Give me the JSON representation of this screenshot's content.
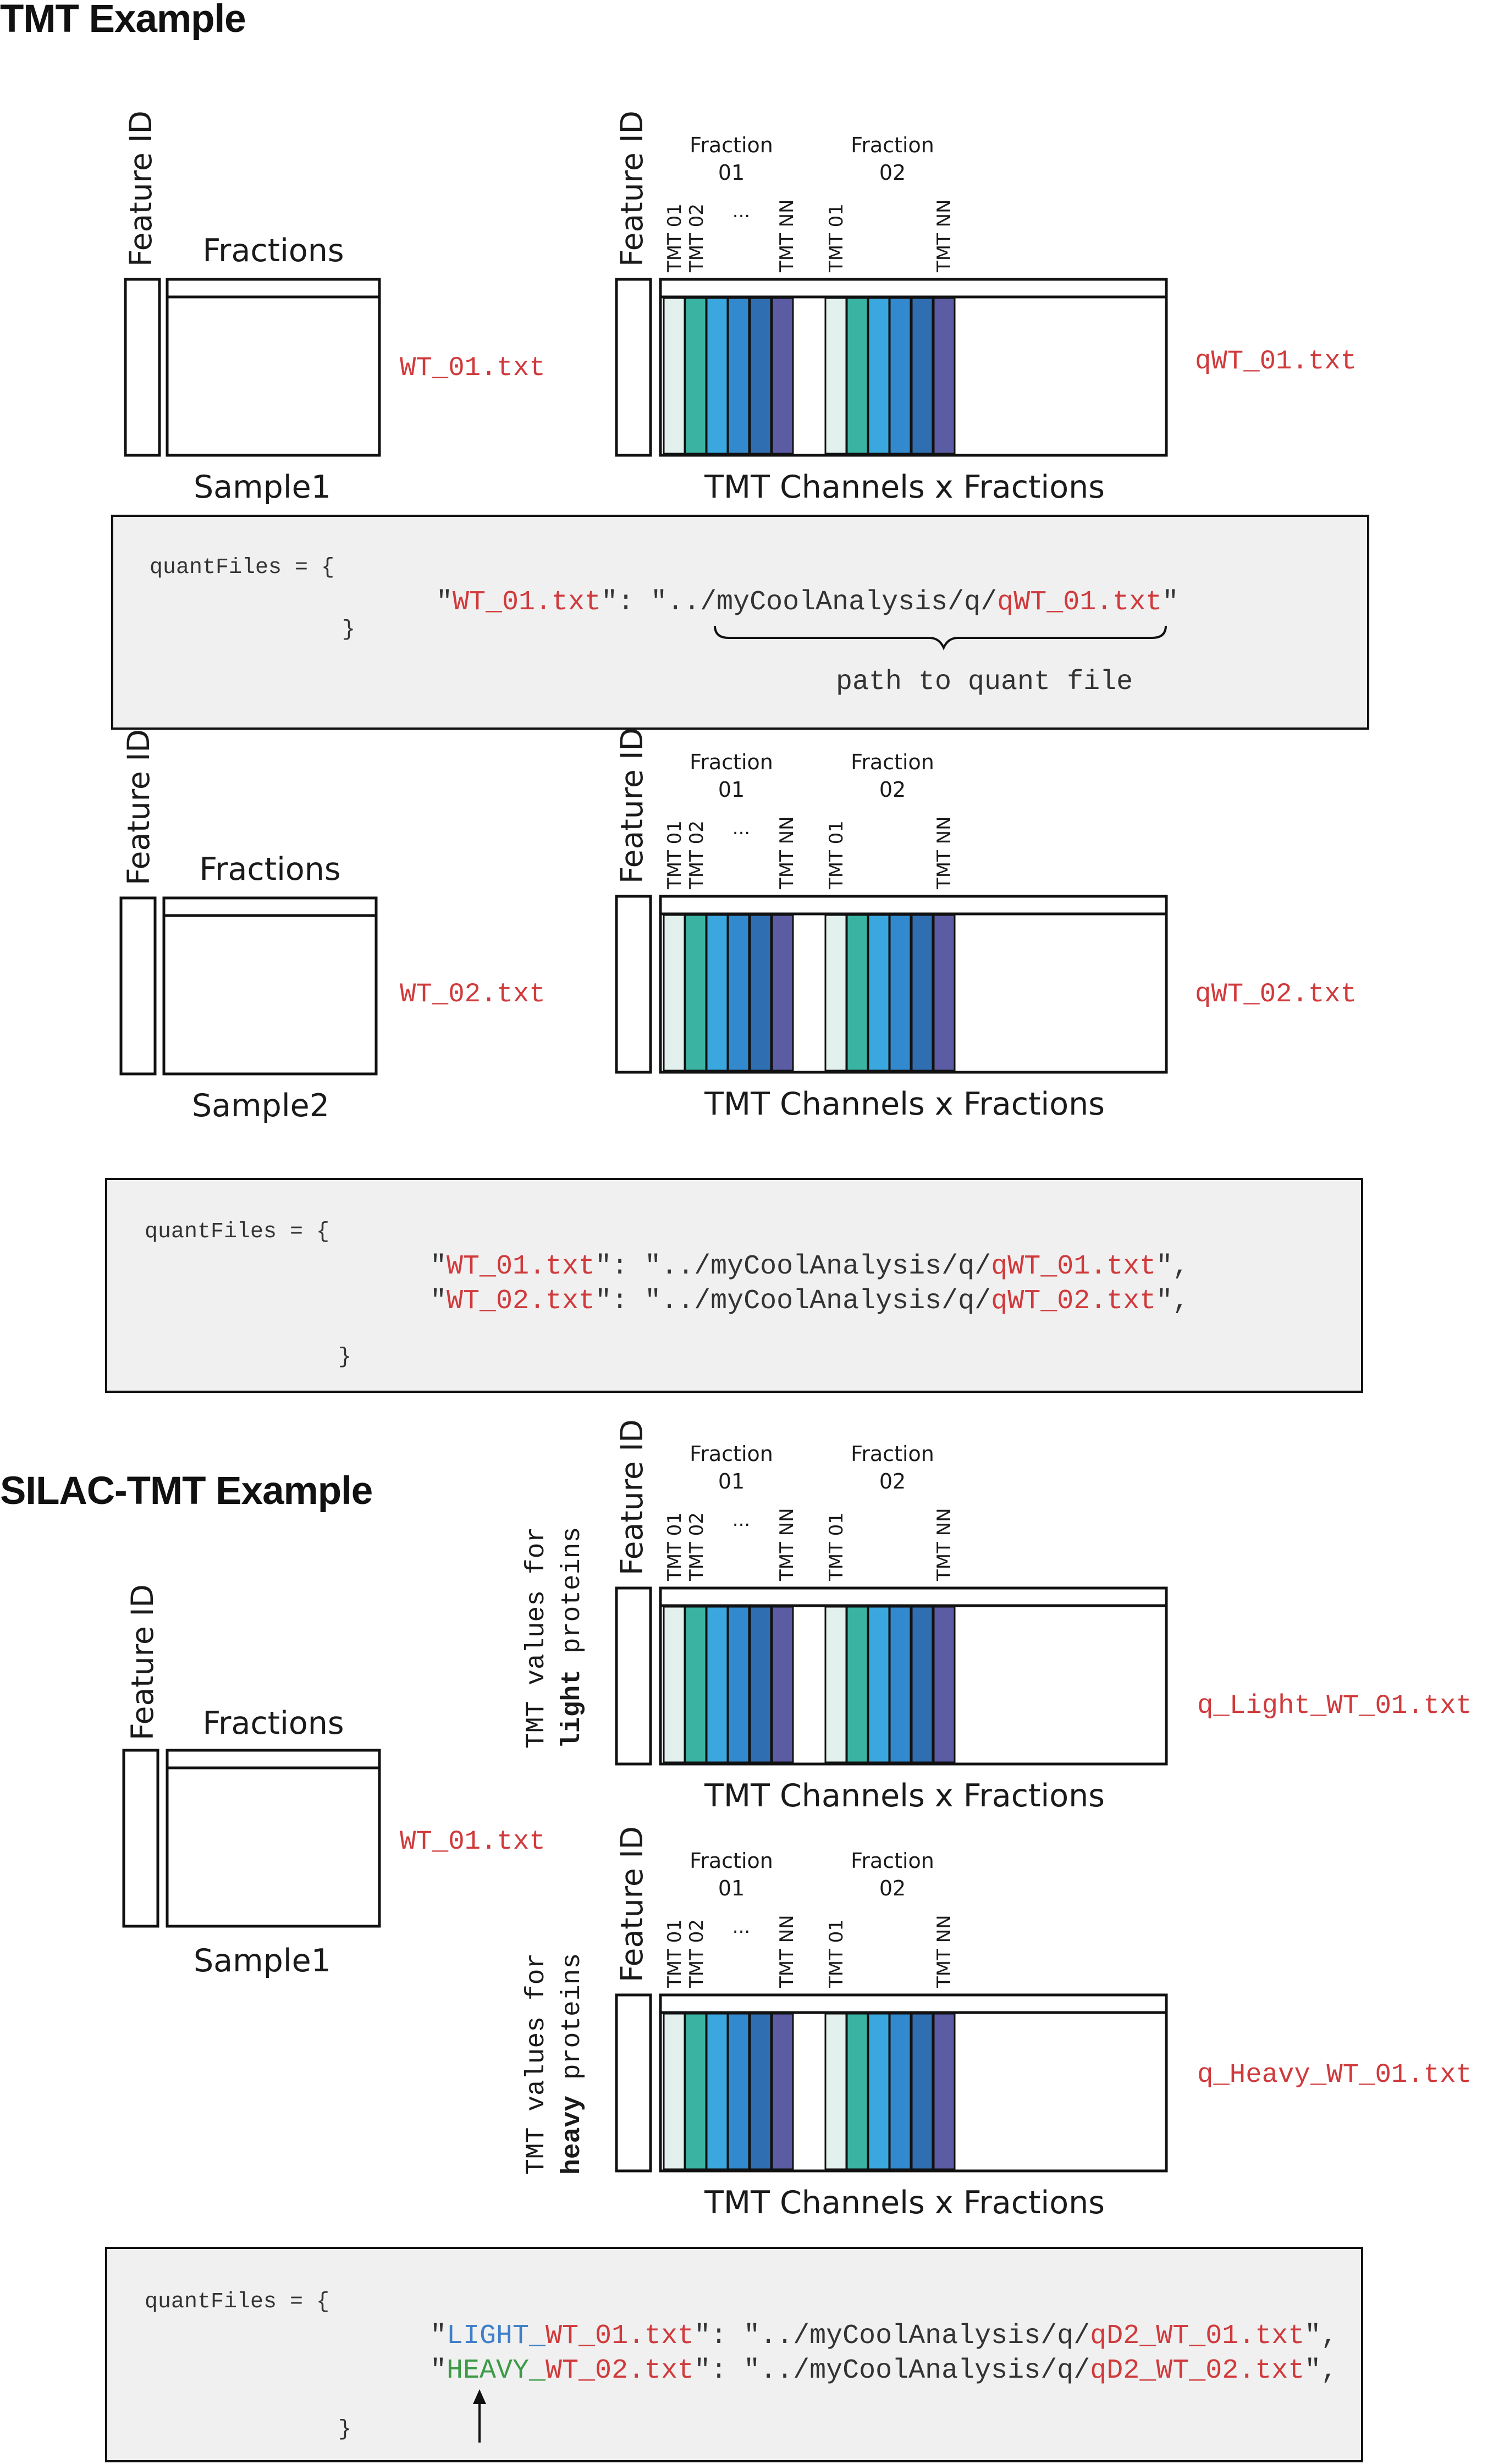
{
  "headings": {
    "tmt": "TMT Example",
    "silac": "SILAC-TMT Example"
  },
  "labels": {
    "feature_id": "Feature ID",
    "fractions": "Fractions",
    "tmt_channels_x_fractions": "TMT Channels x Fractions",
    "fraction_word": "Fraction",
    "fraction_01": "01",
    "fraction_02": "02",
    "tmt_01": "TMT 01",
    "tmt_02": "TMT 02",
    "tmt_nn": "TMT NN",
    "ellipsis": "..."
  },
  "section1": {
    "sample": "Sample1",
    "file": "WT_01.txt",
    "qfile": "qWT_01.txt"
  },
  "code1": {
    "line1": "quantFiles = {",
    "q1": "\"",
    "key": "WT_01.txt",
    "mid": "\": \"../myCoolAnalysis/q/",
    "val": "qWT_01.txt",
    "q2": "\"",
    "close": "}",
    "annotation": "path to quant file"
  },
  "section2": {
    "sample": "Sample2",
    "file": "WT_02.txt",
    "qfile": "qWT_02.txt"
  },
  "code2": {
    "line1": "quantFiles = {",
    "row1_q": "\"",
    "row1_key": "WT_01.txt",
    "row1_mid": "\": \"../myCoolAnalysis/q/",
    "row1_val": "qWT_01.txt",
    "row1_end": "\",",
    "row2_q": "\"",
    "row2_key": "WT_02.txt",
    "row2_mid": "\": \"../myCoolAnalysis/q/",
    "row2_val": "qWT_02.txt",
    "row2_end": "\",",
    "close": "}"
  },
  "silac": {
    "sample": "Sample1",
    "file": "WT_01.txt",
    "light_qfile": "q_Light_WT_01.txt",
    "heavy_qfile": "q_Heavy_WT_01.txt",
    "light_side_1": "TMT values for",
    "light_side_2a": "light",
    "light_side_2b": " proteins",
    "heavy_side_1": "TMT values for",
    "heavy_side_2a": "heavy",
    "heavy_side_2b": " proteins"
  },
  "code3": {
    "line1": "quantFiles = {",
    "row1_q": "\"",
    "row1_prefix": "LIGHT_",
    "row1_key": "WT_01.txt",
    "row1_mid": "\": \"../myCoolAnalysis/q/",
    "row1_val": "qD2_WT_01.txt",
    "row1_end": "\",",
    "row2_q": "\"",
    "row2_prefix": "HEAVY_",
    "row2_key": "WT_02.txt",
    "row2_mid": "\": \"../myCoolAnalysis/q/",
    "row2_val": "qD2_WT_02.txt",
    "row2_end": "\",",
    "close": "}"
  },
  "colors": {
    "file_red": "#d03a3c",
    "light_blue": "#3f7fc7",
    "heavy_green": "#3d9a47",
    "code_box_fill": "#f0f0f0",
    "tmt_channels": [
      "#e2f1ee",
      "#3ab3a2",
      "#3aa8de",
      "#3289ce",
      "#2f6fb1",
      "#5b5ca4"
    ]
  }
}
